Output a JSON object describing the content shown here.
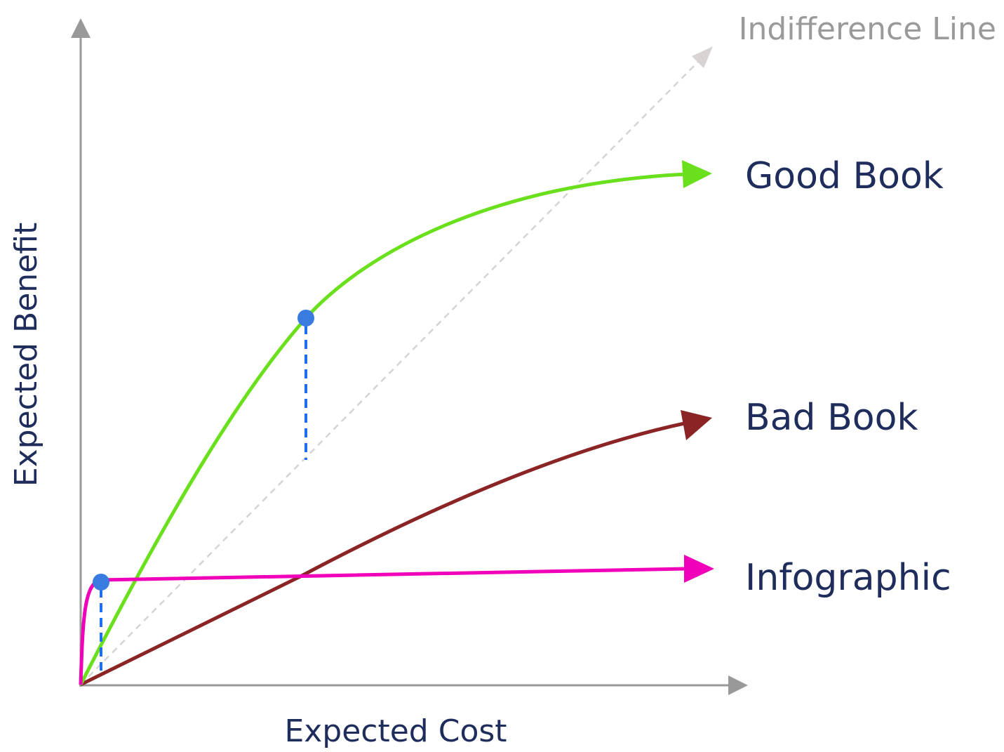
{
  "axes": {
    "x_label": "Expected Cost",
    "y_label": "Expected Benefit"
  },
  "curves": {
    "indifference": "Indifference Line",
    "good_book": "Good Book",
    "bad_book": "Bad Book",
    "infographic": "Infographic"
  }
}
